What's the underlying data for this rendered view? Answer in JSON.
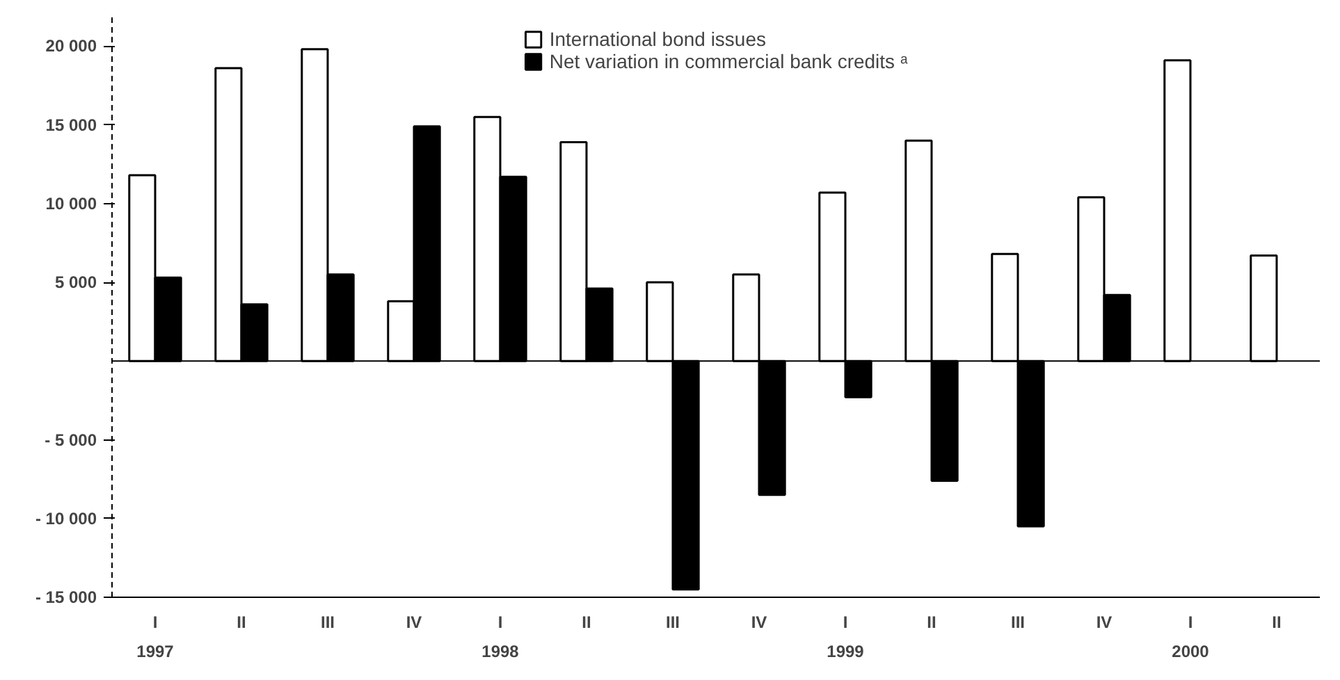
{
  "chart_data": {
    "type": "bar",
    "categories": [
      "I",
      "II",
      "III",
      "IV",
      "I",
      "II",
      "III",
      "IV",
      "I",
      "II",
      "III",
      "IV",
      "I",
      "II"
    ],
    "series": [
      {
        "name": "International bond issues",
        "color": "#ffffff",
        "values": [
          11800,
          18600,
          19800,
          3800,
          15500,
          13900,
          5000,
          5500,
          10700,
          14000,
          6800,
          10400,
          19100,
          6700
        ]
      },
      {
        "name": "Net variation in commercial bank credits ᵃ",
        "color": "#000000",
        "values": [
          5300,
          3600,
          5500,
          14900,
          11700,
          4600,
          -14500,
          -8500,
          -2300,
          -7600,
          -10500,
          4200,
          null,
          null
        ]
      }
    ],
    "ylim": [
      -15000,
      22000
    ],
    "yticks": [
      {
        "value": -15000,
        "label": "- 15 000"
      },
      {
        "value": -10000,
        "label": "- 10 000"
      },
      {
        "value": -5000,
        "label": "- 5 000"
      },
      {
        "value": 5000,
        "label": "5 000"
      },
      {
        "value": 10000,
        "label": "10 000"
      },
      {
        "value": 15000,
        "label": "15 000"
      },
      {
        "value": 20000,
        "label": "20 000"
      }
    ],
    "ref_lines": [
      {
        "axis": "y",
        "value": 0,
        "color": "#000000"
      }
    ],
    "annotations": [
      "1997",
      "1998",
      "1999",
      "2000"
    ],
    "grid": false,
    "legend": "top"
  }
}
